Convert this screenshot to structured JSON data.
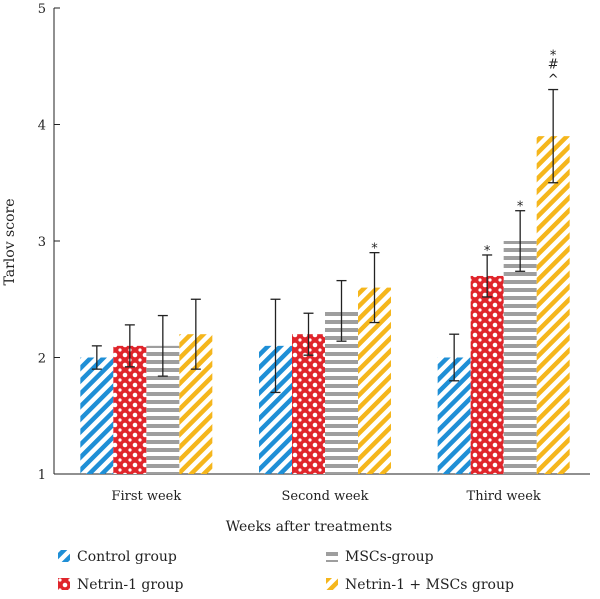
{
  "chart_data": {
    "type": "bar",
    "title": "",
    "xlabel": "Weeks after treatments",
    "ylabel": "Tarlov score",
    "ylim": [
      1,
      5
    ],
    "yticks": [
      "1",
      "2",
      "3",
      "4",
      "5"
    ],
    "categories": [
      "First week",
      "Second week",
      "Third week"
    ],
    "series": [
      {
        "name": "Control group",
        "color": "#1f8fd6",
        "pattern": "diagonal-stripes",
        "values": [
          2.0,
          2.1,
          2.0
        ],
        "errors": [
          0.1,
          0.4,
          0.2
        ],
        "sig": [
          "",
          "",
          ""
        ]
      },
      {
        "name": "Netrin-1 group",
        "color": "#e0252b",
        "pattern": "dots",
        "values": [
          2.1,
          2.2,
          2.7
        ],
        "errors": [
          0.18,
          0.18,
          0.18
        ],
        "sig": [
          "",
          "",
          "*"
        ]
      },
      {
        "name": "MSCs-group",
        "color": "#9e9e9e",
        "pattern": "horizontal-stripes",
        "values": [
          2.1,
          2.4,
          3.0
        ],
        "errors": [
          0.26,
          0.26,
          0.26
        ],
        "sig": [
          "",
          "",
          "*"
        ]
      },
      {
        "name": "Netrin-1 + MSCs group",
        "color": "#f5b61c",
        "pattern": "diagonal-stripes",
        "values": [
          2.2,
          2.6,
          3.9
        ],
        "errors": [
          0.3,
          0.3,
          0.4
        ],
        "sig": [
          "",
          "*",
          "*\n#\n^"
        ]
      }
    ]
  }
}
